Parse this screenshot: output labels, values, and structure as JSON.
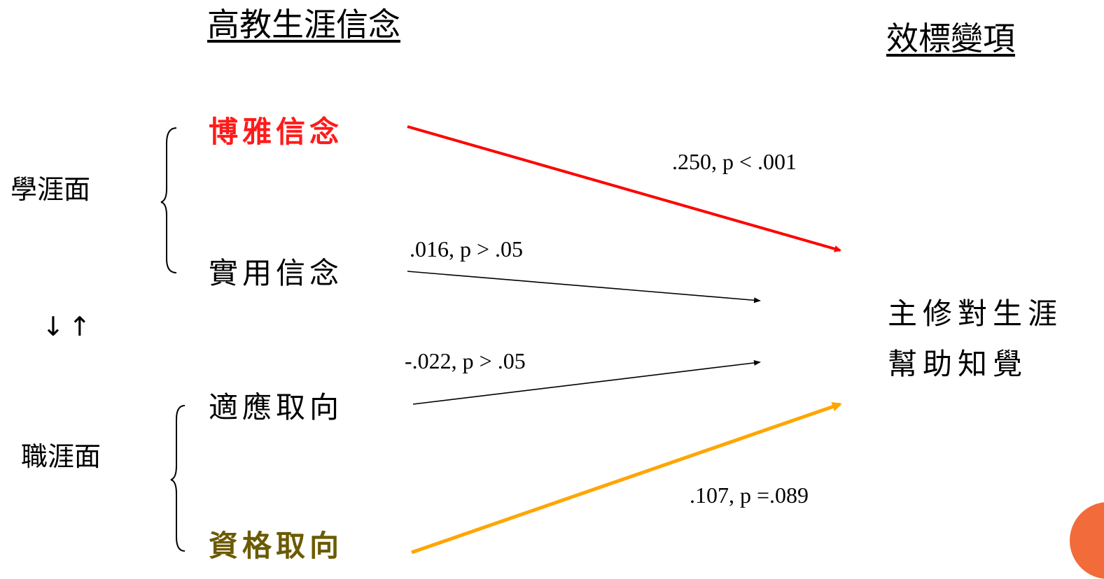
{
  "headers": {
    "left": "高教生涯信念",
    "right": "效標變項"
  },
  "groups": {
    "academic": "學涯面",
    "career": "職涯面"
  },
  "between_group_arrows": "↓↑",
  "predictors": [
    {
      "id": "liberal",
      "label": "博雅信念",
      "color": "#ff1a1a"
    },
    {
      "id": "practical",
      "label": "實用信念",
      "color": "#000000"
    },
    {
      "id": "adaptive",
      "label": "適應取向",
      "color": "#000000"
    },
    {
      "id": "credential",
      "label": "資格取向",
      "color": "#6b5a00"
    }
  ],
  "criterion": {
    "line1": "主修對生涯",
    "line2": "幫助知覺"
  },
  "paths": [
    {
      "from": "liberal",
      "coefficient": ".250, p < .001",
      "color": "#ff0000"
    },
    {
      "from": "practical",
      "coefficient": ".016, p > .05",
      "color": "#000000"
    },
    {
      "from": "adaptive",
      "coefficient": "-.022, p > .05",
      "color": "#000000"
    },
    {
      "from": "credential",
      "coefficient": ".107, p =.089",
      "color": "#ffa500"
    }
  ],
  "colors": {
    "bubble": "#f26b3a"
  }
}
